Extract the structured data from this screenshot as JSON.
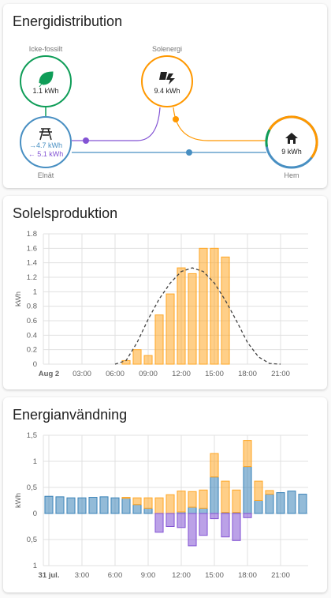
{
  "energy_distribution": {
    "title": "Energidistribution",
    "nodes": {
      "fossil_free": {
        "label": "Icke-fossilt",
        "value": "1.1 kWh"
      },
      "solar": {
        "label": "Solenergi",
        "value": "9.4 kWh"
      },
      "grid": {
        "label": "Elnät",
        "import": "→4.7 kWh",
        "export": "← 5.1 kWh"
      },
      "home": {
        "label": "Hem",
        "value": "9 kWh"
      }
    }
  },
  "chart_data": [
    {
      "type": "bar",
      "title": "Solelsproduktion",
      "y_label": "kWh",
      "categories": [
        "Aug 2",
        null,
        null,
        "03:00",
        null,
        null,
        "06:00",
        null,
        null,
        "09:00",
        null,
        null,
        "12:00",
        null,
        null,
        "15:00",
        null,
        null,
        "18:00",
        null,
        null,
        "21:00",
        null,
        null
      ],
      "series": [
        {
          "type": "bar",
          "color": "#ffa726",
          "values": [
            null,
            null,
            null,
            null,
            null,
            null,
            null,
            0.05,
            0.2,
            0.12,
            0.68,
            0.97,
            1.33,
            1.25,
            1.6,
            1.6,
            1.48,
            null,
            null,
            null,
            null,
            null,
            null,
            null
          ]
        },
        {
          "type": "line",
          "dashed": true,
          "color": "#424242",
          "values": [
            null,
            null,
            null,
            null,
            null,
            null,
            0,
            0.05,
            0.3,
            0.62,
            0.9,
            1.12,
            1.28,
            1.33,
            1.28,
            1.12,
            0.88,
            0.6,
            0.3,
            0.1,
            0.01,
            0,
            null,
            null
          ]
        }
      ],
      "ylim": [
        0,
        1.8
      ],
      "yticks": [
        0,
        0.2,
        0.4,
        0.6,
        0.8,
        1,
        1.2,
        1.4,
        1.6,
        1.8
      ],
      "grid": true,
      "stacked": false
    },
    {
      "type": "bar",
      "title": "Energianvändning",
      "y_label": "kWh",
      "categories": [
        "31 jul.",
        null,
        null,
        "3:00",
        null,
        null,
        "6:00",
        null,
        null,
        "9:00",
        null,
        null,
        "12:00",
        null,
        null,
        "15:00",
        null,
        null,
        "18:00",
        null,
        null,
        "21:00",
        null,
        null
      ],
      "series": [
        {
          "type": "bar",
          "color": "#3b83b8",
          "values": [
            0.33,
            0.32,
            0.3,
            0.3,
            0.31,
            0.32,
            0.3,
            0.29,
            0.17,
            0.1,
            0,
            0,
            0.03,
            0.12,
            0.1,
            0.7,
            0.02,
            0.02,
            0.9,
            0.25,
            0.37,
            0.4,
            0.43,
            0.37
          ]
        },
        {
          "type": "bar",
          "color": "#ffa726",
          "values": [
            0,
            0,
            0,
            0,
            0,
            0,
            0,
            0.02,
            0.13,
            0.2,
            0.3,
            0.36,
            0.4,
            0.3,
            0.35,
            0.45,
            0.6,
            0.43,
            0.5,
            0.37,
            0.07,
            0,
            0,
            0
          ]
        },
        {
          "type": "bar",
          "color": "#8353d4",
          "values": [
            0,
            0,
            0,
            0,
            0,
            0,
            0,
            0,
            0,
            0,
            -0.36,
            -0.25,
            -0.27,
            -0.62,
            -0.42,
            -0.1,
            -0.45,
            -0.52,
            -0.08,
            0,
            0,
            0,
            0,
            0
          ]
        }
      ],
      "ylim": [
        -1,
        1.5
      ],
      "yticks": [
        {
          "value": -1,
          "label": "1"
        },
        {
          "value": -0.5,
          "label": "0,5"
        },
        0,
        {
          "value": 0.5,
          "label": "0,5"
        },
        1,
        {
          "value": 1.5,
          "label": "1,5"
        }
      ],
      "grid": true,
      "stacked": true
    }
  ]
}
